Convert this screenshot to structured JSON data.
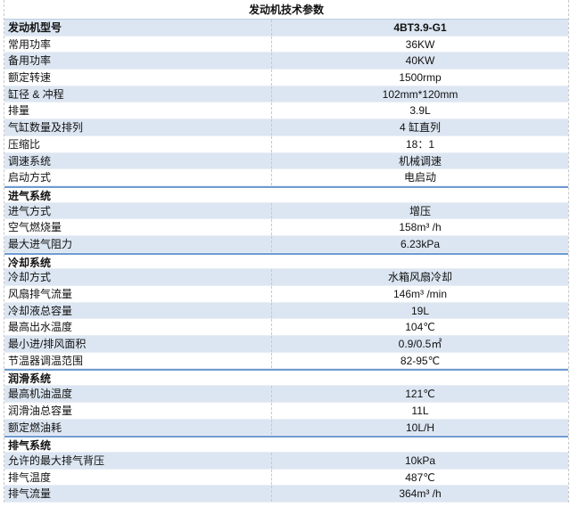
{
  "title": "发动机技术参数",
  "model": {
    "label": "发动机型号",
    "value": "4BT3.9-G1"
  },
  "general": [
    {
      "label": "常用功率",
      "value": "36KW"
    },
    {
      "label": "备用功率",
      "value": "40KW"
    },
    {
      "label": "额定转速",
      "value": "1500rmp"
    },
    {
      "label": "缸径 & 冲程",
      "value": "102mm*120mm"
    },
    {
      "label": "排量",
      "value": "3.9L"
    },
    {
      "label": "气缸数量及排列",
      "value": "4 缸直列"
    },
    {
      "label": "压缩比",
      "value": "18：1"
    },
    {
      "label": "调速系统",
      "value": "机械调速"
    },
    {
      "label": "启动方式",
      "value": "电启动"
    }
  ],
  "sections": [
    {
      "title": "进气系统",
      "rows": [
        {
          "label": "进气方式",
          "value": "增压"
        },
        {
          "label": "空气燃烧量",
          "value": "158m³ /h"
        },
        {
          "label": "最大进气阻力",
          "value": "6.23kPa"
        }
      ]
    },
    {
      "title": "冷却系统",
      "rows": [
        {
          "label": "冷却方式",
          "value": "水箱风扇冷却"
        },
        {
          "label": "风扇排气流量",
          "value": "146m³  /min"
        },
        {
          "label": "冷却液总容量",
          "value": "19L"
        },
        {
          "label": "最高出水温度",
          "value": "104℃"
        },
        {
          "label": "最小进/排风面积",
          "value": "0.9/0.5㎡"
        },
        {
          "label": "节温器调温范围",
          "value": "82-95℃"
        }
      ]
    },
    {
      "title": "润滑系统",
      "rows": [
        {
          "label": "最高机油温度",
          "value": "121℃"
        },
        {
          "label": "润滑油总容量",
          "value": "11L"
        },
        {
          "label": "额定燃油耗",
          "value": "10L/H"
        }
      ]
    },
    {
      "title": "排气系统",
      "rows": [
        {
          "label": "允许的最大排气背压",
          "value": "10kPa"
        },
        {
          "label": "排气温度",
          "value": "487℃"
        },
        {
          "label": "排气流量",
          "value": "364m³ /h"
        }
      ]
    }
  ],
  "colors": {
    "row_alt": "#dce6f2",
    "section_border": "#6f9bd1"
  }
}
